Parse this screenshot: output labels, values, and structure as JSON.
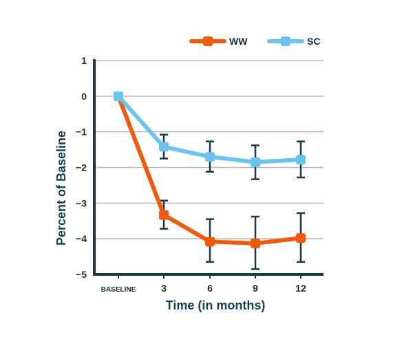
{
  "chart_data": {
    "type": "line",
    "title": "",
    "xlabel": "Time (in months)",
    "ylabel": "Percent of Baseline",
    "categories": [
      "BASELINE",
      "3",
      "6",
      "9",
      "12"
    ],
    "ylim": [
      -5,
      1
    ],
    "yticks": [
      1,
      0,
      -1,
      -2,
      -3,
      -4,
      -5
    ],
    "ytick_labels": [
      "1",
      "0",
      "−1",
      "−2",
      "−3",
      "−4",
      "−5"
    ],
    "grid": true,
    "legend_position": "top-right",
    "series": [
      {
        "name": "WW",
        "color": "#f05a0a",
        "values": [
          0,
          -3.33,
          -4.08,
          -4.13,
          -3.98
        ],
        "error_low": [
          null,
          -3.72,
          -4.65,
          -4.85,
          -4.65
        ],
        "error_high": [
          null,
          -2.93,
          -3.45,
          -3.38,
          -3.28
        ]
      },
      {
        "name": "SC",
        "color": "#6cc3ee",
        "values": [
          0,
          -1.42,
          -1.7,
          -1.85,
          -1.78
        ],
        "error_low": [
          null,
          -1.75,
          -2.12,
          -2.33,
          -2.28
        ],
        "error_high": [
          null,
          -1.08,
          -1.27,
          -1.38,
          -1.27
        ]
      }
    ],
    "error_bar_color": "#173a4a"
  }
}
